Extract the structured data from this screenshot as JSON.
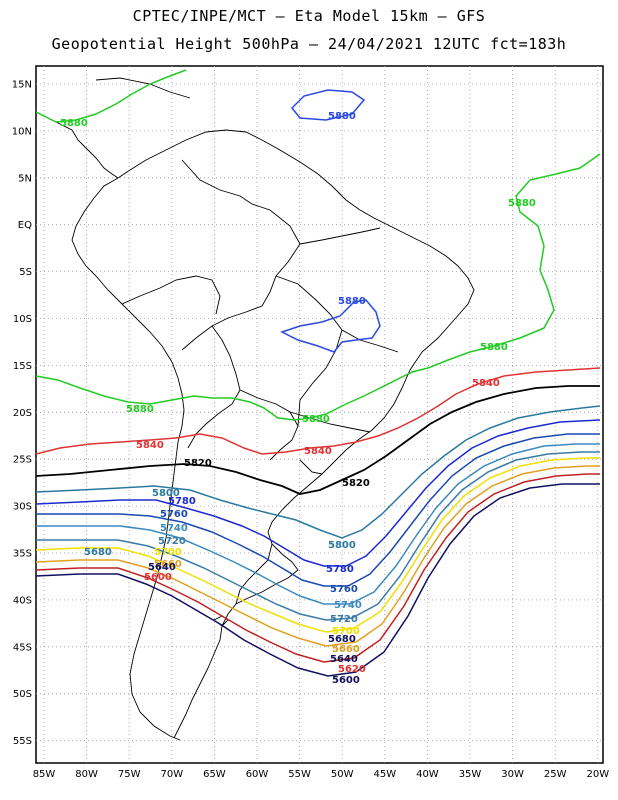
{
  "header": {
    "line1": "CPTEC/INPE/MCT –  Eta Model 15km – GFS",
    "line2": "Geopotential Height 500hPa – 24/04/2021 12UTC fct=183h"
  },
  "axes": {
    "lat_labels": [
      "15N",
      "10N",
      "5N",
      "EQ",
      "5S",
      "10S",
      "15S",
      "20S",
      "25S",
      "30S",
      "35S",
      "40S",
      "45S",
      "50S",
      "55S"
    ],
    "lon_labels": [
      "85W",
      "80W",
      "75W",
      "70W",
      "65W",
      "60W",
      "55W",
      "50W",
      "45W",
      "40W",
      "35W",
      "30W",
      "25W",
      "20W"
    ]
  },
  "colors": {
    "c5880": "#22cc22",
    "c5840": "#e03333",
    "c5820": "#000000",
    "c5800": "#2a7aa0",
    "c5780": "#1a2ad0",
    "c5760": "#1a4ab0",
    "c5740": "#3a8ac0",
    "c5720": "#3a7aa8",
    "c5700": "#f0e000",
    "c5680": "#e0a020",
    "c5660": "#c02020",
    "c5640": "#101060",
    "c5880_blue": "#2a4ae0"
  },
  "contours": [
    {
      "value": "5880",
      "color": "c5880"
    },
    {
      "value": "5840",
      "color": "c5840"
    },
    {
      "value": "5820",
      "color": "c5820"
    },
    {
      "value": "5800",
      "color": "c5800"
    },
    {
      "value": "5780",
      "color": "c5780"
    },
    {
      "value": "5760",
      "color": "c5760"
    },
    {
      "value": "5740",
      "color": "c5740"
    },
    {
      "value": "5720",
      "color": "c5720"
    },
    {
      "value": "5700",
      "color": "c5700"
    },
    {
      "value": "5680",
      "color": "c5680"
    },
    {
      "value": "5660",
      "color": "c5840"
    },
    {
      "value": "5640",
      "color": "c5640"
    }
  ],
  "labels": {
    "l5880_north": "5880",
    "l5880_west": "5880",
    "l5880_east": "5880",
    "l5880_brazil": "5880",
    "l5880_east2": "5880",
    "l5880_chile": "5880",
    "l5880_south": "5880",
    "l5840_a": "5840",
    "l5840_b": "5840",
    "l5840_c": "5840",
    "l5820_a": "5820",
    "l5820_b": "5820",
    "l5800_a": "5800",
    "l5800_b": "5800",
    "l5780_a": "5780",
    "l5780_b": "5780",
    "l5760_a": "5760",
    "l5760_b": "5760",
    "l5740_a": "5740",
    "l5740_b": "5740",
    "l5720_a": "5720",
    "l5720_b": "5720",
    "l5700_a": "5700",
    "l5700_b": "5700",
    "l5680_a": "5680",
    "l5680_b": "5680",
    "l5660_a": "5660",
    "l5660_b": "5660",
    "l5640_a": "5640",
    "l5640_b": "5640",
    "l5620_a": "5620",
    "l5600_a": "5600",
    "l5600_b": "5600"
  }
}
